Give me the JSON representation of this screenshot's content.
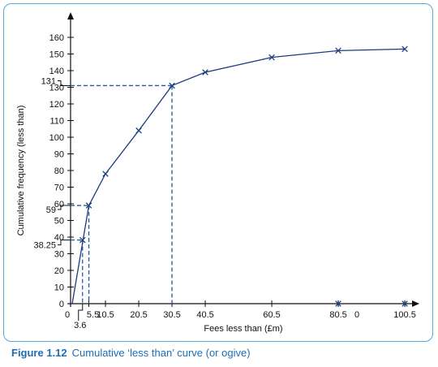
{
  "chart_data": {
    "type": "line",
    "xlabel": "Fees less than (£m)",
    "ylabel": "Cumulative frequency (less than)",
    "xlim": [
      0,
      100.5
    ],
    "ylim": [
      0,
      160
    ],
    "grid": false,
    "x_ticks": [
      "0",
      "5.5",
      "10.5",
      "20.5",
      "30.5",
      "40.5",
      "60.5",
      "80.5",
      "100.5"
    ],
    "y_ticks": [
      "0",
      "10",
      "20",
      "30",
      "40",
      "50",
      "60",
      "70",
      "80",
      "90",
      "100",
      "110",
      "120",
      "130",
      "140",
      "150",
      "160"
    ],
    "series": [
      {
        "x": [
          0.5,
          5.5,
          10.5,
          20.5,
          30.5,
          40.5,
          60.5,
          80.5,
          100.5
        ],
        "y": [
          0,
          59,
          78,
          104,
          131,
          139,
          148,
          152,
          153
        ]
      }
    ],
    "extra_points": [
      {
        "x": 80.5,
        "y": 0
      },
      {
        "x": 100.5,
        "y": 0
      }
    ],
    "annotations": {
      "median": {
        "x": 30.5,
        "y": 131,
        "label": "131"
      },
      "p59": {
        "x": 5.5,
        "y": 59,
        "label": "59"
      },
      "p38": {
        "x": 3.6,
        "y": 38.25,
        "label": "38.25",
        "x_label": "3.6"
      },
      "zero_near_80": "0"
    },
    "colors": {
      "line": "#1a3e7a",
      "guide": "#1f5aa8",
      "axis": "#111111"
    }
  },
  "caption": {
    "figure": "Figure 1.12",
    "text": "Cumulative ‘less than’ curve (or ogive)"
  }
}
